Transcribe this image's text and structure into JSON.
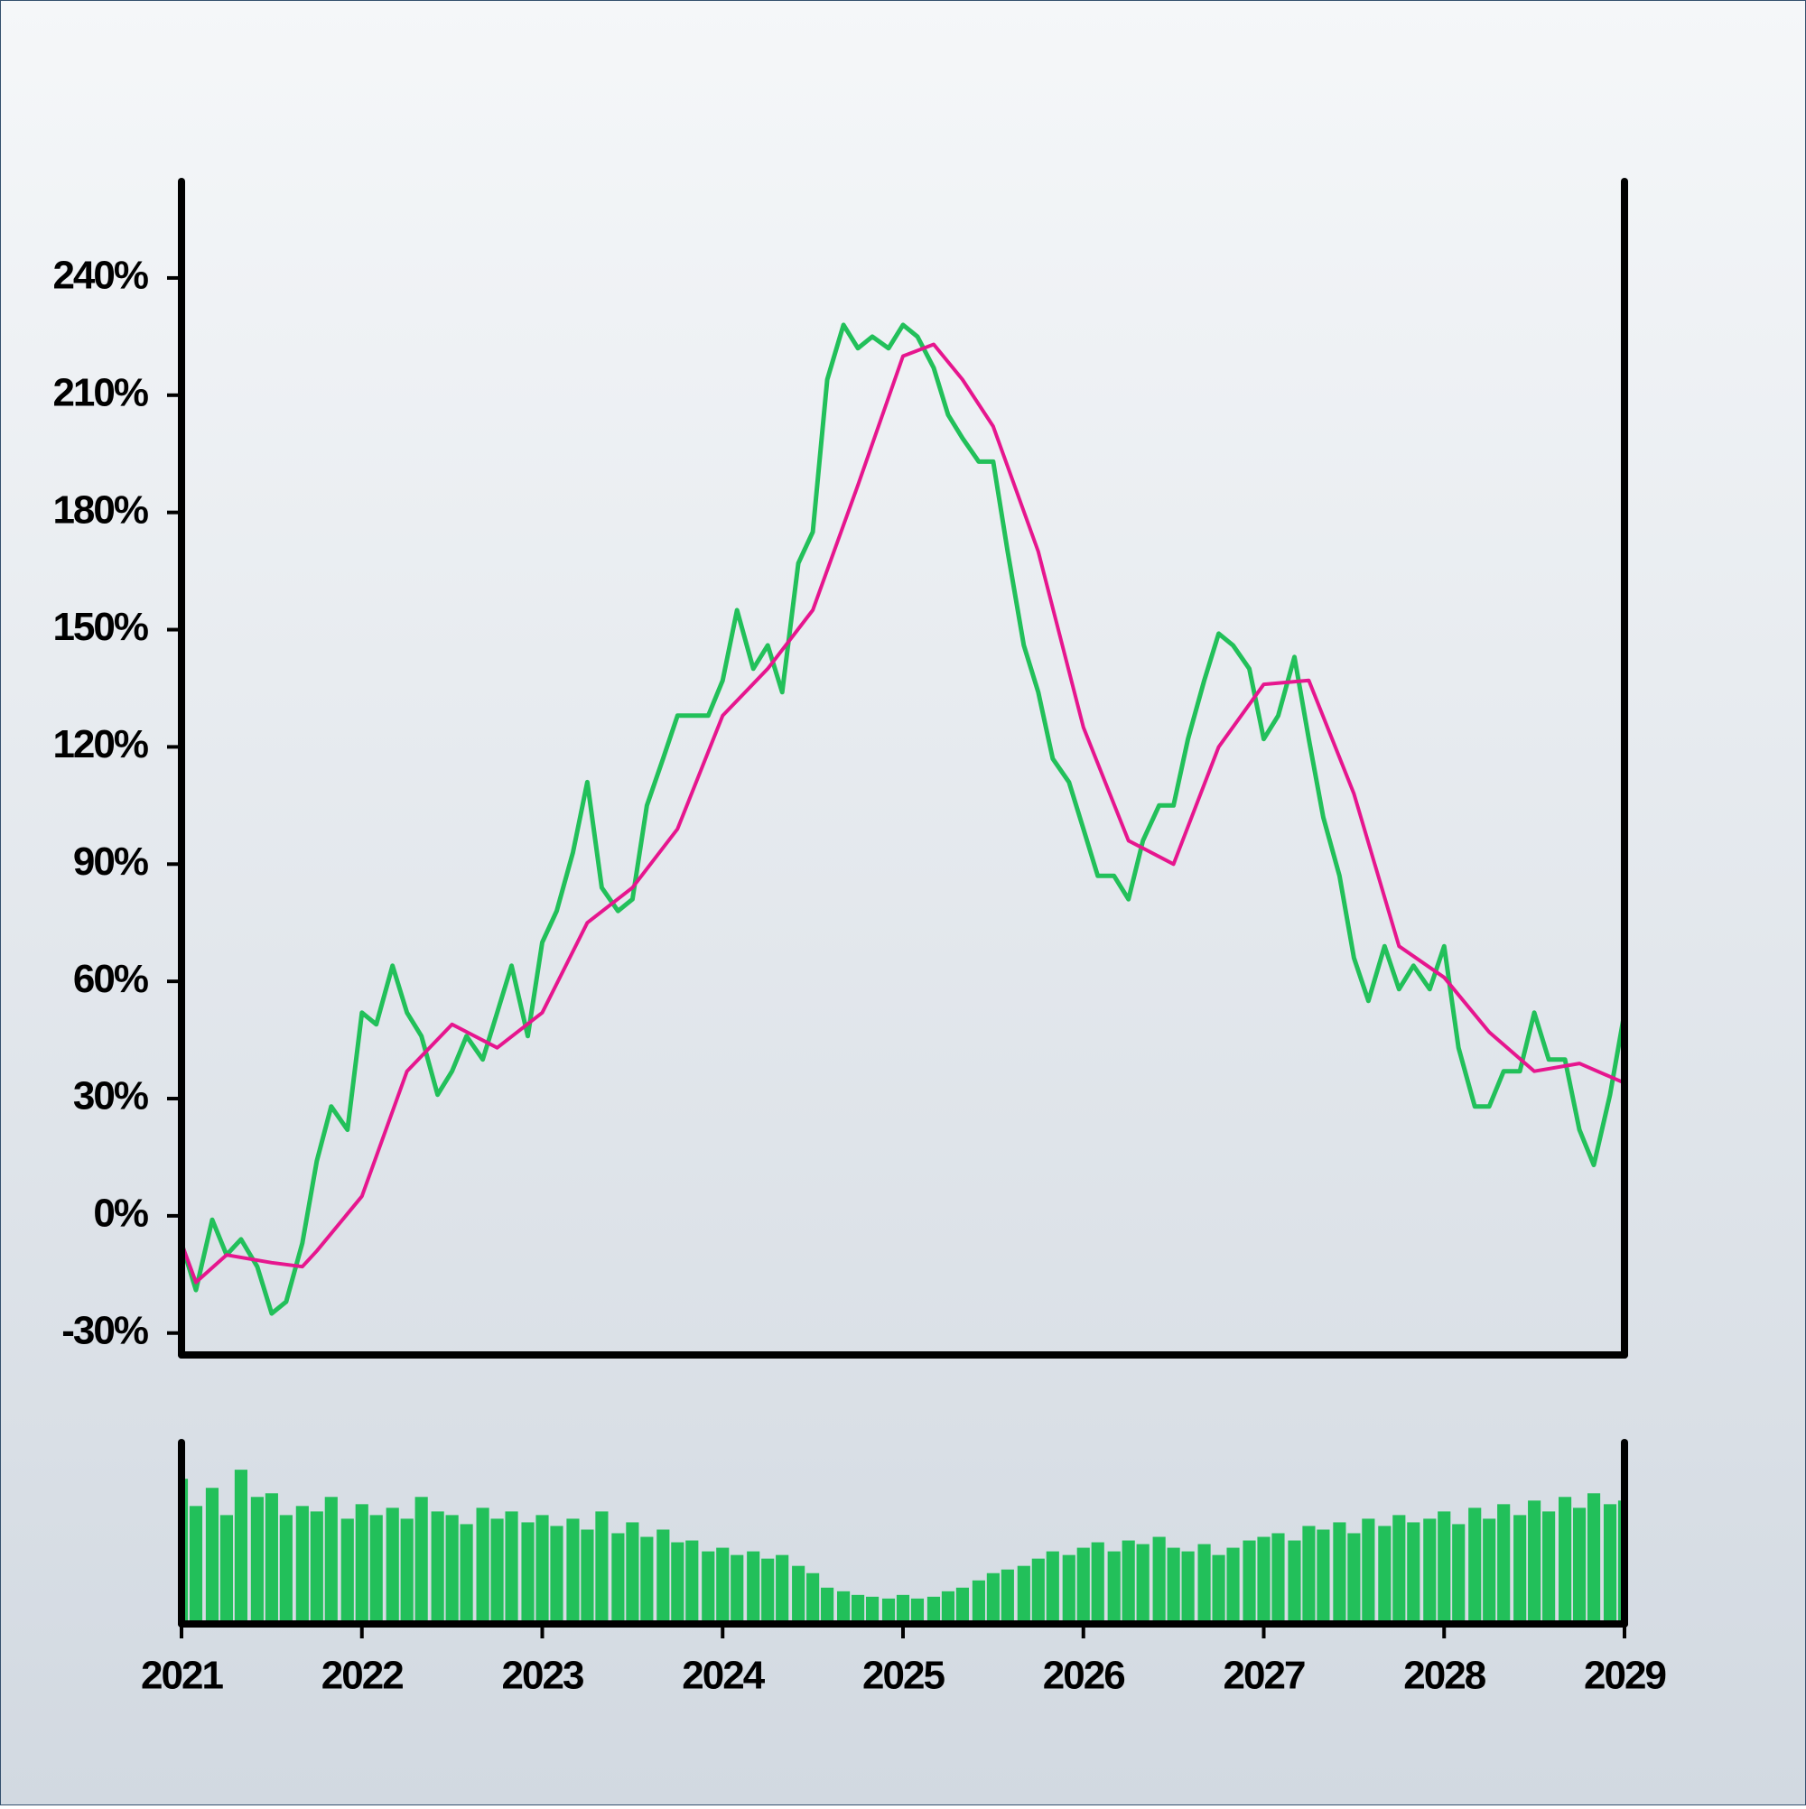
{
  "chart_data": [
    {
      "type": "line",
      "xlim": [
        2021,
        2029
      ],
      "ylim": [
        -35.6,
        264.7
      ],
      "yticks": [
        {
          "value": -30,
          "label": "-30%"
        },
        {
          "value": 0,
          "label": "0%"
        },
        {
          "value": 30,
          "label": "30%"
        },
        {
          "value": 60,
          "label": "60%"
        },
        {
          "value": 90,
          "label": "90%"
        },
        {
          "value": 120,
          "label": "120%"
        },
        {
          "value": 150,
          "label": "150%"
        },
        {
          "value": 180,
          "label": "180%"
        },
        {
          "value": 210,
          "label": "210%"
        },
        {
          "value": 240,
          "label": "240%"
        }
      ],
      "series": [
        {
          "color": "#22c05a",
          "x": [
            2021.0,
            2021.08,
            2021.17,
            2021.25,
            2021.33,
            2021.42,
            2021.5,
            2021.58,
            2021.67,
            2021.75,
            2021.83,
            2021.92,
            2022.0,
            2022.08,
            2022.17,
            2022.25,
            2022.33,
            2022.42,
            2022.5,
            2022.58,
            2022.67,
            2022.75,
            2022.83,
            2022.92,
            2023.0,
            2023.08,
            2023.17,
            2023.25,
            2023.33,
            2023.42,
            2023.5,
            2023.58,
            2023.67,
            2023.75,
            2023.83,
            2023.92,
            2024.0,
            2024.08,
            2024.17,
            2024.25,
            2024.33,
            2024.42,
            2024.5,
            2024.58,
            2024.67,
            2024.75,
            2024.83,
            2024.92,
            2025.0,
            2025.08,
            2025.17,
            2025.25,
            2025.33,
            2025.42,
            2025.5,
            2025.58,
            2025.67,
            2025.75,
            2025.83,
            2025.92,
            2026.0,
            2026.08,
            2026.17,
            2026.25,
            2026.33,
            2026.42,
            2026.5,
            2026.58,
            2026.67,
            2026.75,
            2026.83,
            2026.92,
            2027.0,
            2027.08,
            2027.17,
            2027.25,
            2027.33,
            2027.42,
            2027.5,
            2027.58,
            2027.67,
            2027.75,
            2027.83,
            2027.92,
            2028.0,
            2028.08,
            2028.17,
            2028.25,
            2028.33,
            2028.42,
            2028.5,
            2028.58,
            2028.67,
            2028.75,
            2028.83,
            2028.92,
            2029.0
          ],
          "values": [
            -7,
            -19,
            -1,
            -10,
            -6,
            -13,
            -25,
            -22,
            -7,
            14,
            28,
            22,
            52,
            49,
            64,
            52,
            46,
            31,
            37,
            46,
            40,
            52,
            64,
            46,
            70,
            78,
            93,
            111,
            84,
            78,
            81,
            105,
            117,
            128,
            128,
            128,
            137,
            155,
            140,
            146,
            134,
            167,
            175,
            214,
            228,
            222,
            225,
            222,
            228,
            225,
            217,
            205,
            199,
            193,
            193,
            170,
            146,
            134,
            117,
            111,
            99,
            87,
            87,
            81,
            96,
            105,
            105,
            122,
            137,
            149,
            146,
            140,
            122,
            128,
            143,
            122,
            102,
            87,
            66,
            55,
            69,
            58,
            64,
            58,
            69,
            43,
            28,
            28,
            37,
            37,
            52,
            40,
            40,
            22,
            13,
            31,
            52
          ]
        },
        {
          "color": "#e6168e",
          "x": [
            2021.0,
            2021.08,
            2021.25,
            2021.5,
            2021.67,
            2021.75,
            2022.0,
            2022.25,
            2022.5,
            2022.75,
            2023.0,
            2023.25,
            2023.5,
            2023.75,
            2024.0,
            2024.25,
            2024.5,
            2024.75,
            2025.0,
            2025.17,
            2025.33,
            2025.5,
            2025.75,
            2026.0,
            2026.25,
            2026.5,
            2026.75,
            2027.0,
            2027.25,
            2027.5,
            2027.75,
            2028.0,
            2028.25,
            2028.5,
            2028.75,
            2029.0
          ],
          "values": [
            -7,
            -17,
            -10,
            -12,
            -13,
            -9,
            5,
            37,
            49,
            43,
            52,
            75,
            84,
            99,
            128,
            140,
            155,
            187,
            220,
            223,
            214,
            202,
            170,
            125,
            96,
            90,
            120,
            136,
            137,
            108,
            69,
            61,
            47,
            37,
            39,
            34
          ]
        }
      ]
    },
    {
      "type": "bar",
      "color": "#22c05a",
      "xlim": [
        2021,
        2029
      ],
      "ylim": [
        0,
        100
      ],
      "xticks": [
        2021,
        2022,
        2023,
        2024,
        2025,
        2026,
        2027,
        2028,
        2029
      ],
      "x": [
        2021.0,
        2021.08,
        2021.17,
        2021.25,
        2021.33,
        2021.42,
        2021.5,
        2021.58,
        2021.67,
        2021.75,
        2021.83,
        2021.92,
        2022.0,
        2022.08,
        2022.17,
        2022.25,
        2022.33,
        2022.42,
        2022.5,
        2022.58,
        2022.67,
        2022.75,
        2022.83,
        2022.92,
        2023.0,
        2023.08,
        2023.17,
        2023.25,
        2023.33,
        2023.42,
        2023.5,
        2023.58,
        2023.67,
        2023.75,
        2023.83,
        2023.92,
        2024.0,
        2024.08,
        2024.17,
        2024.25,
        2024.33,
        2024.42,
        2024.5,
        2024.58,
        2024.67,
        2024.75,
        2024.83,
        2024.92,
        2025.0,
        2025.08,
        2025.17,
        2025.25,
        2025.33,
        2025.42,
        2025.5,
        2025.58,
        2025.67,
        2025.75,
        2025.83,
        2025.92,
        2026.0,
        2026.08,
        2026.17,
        2026.25,
        2026.33,
        2026.42,
        2026.5,
        2026.58,
        2026.67,
        2026.75,
        2026.83,
        2026.92,
        2027.0,
        2027.08,
        2027.17,
        2027.25,
        2027.33,
        2027.42,
        2027.5,
        2027.58,
        2027.67,
        2027.75,
        2027.83,
        2027.92,
        2028.0,
        2028.08,
        2028.17,
        2028.25,
        2028.33,
        2028.42,
        2028.5,
        2028.58,
        2028.67,
        2028.75,
        2028.83,
        2028.92,
        2029.0
      ],
      "values": [
        80,
        65,
        75,
        60,
        85,
        70,
        72,
        60,
        65,
        62,
        70,
        58,
        66,
        60,
        64,
        58,
        70,
        62,
        60,
        55,
        64,
        58,
        62,
        56,
        60,
        54,
        58,
        52,
        62,
        50,
        56,
        48,
        52,
        45,
        46,
        40,
        42,
        38,
        40,
        36,
        38,
        32,
        28,
        20,
        18,
        16,
        15,
        14,
        16,
        14,
        15,
        18,
        20,
        24,
        28,
        30,
        32,
        36,
        40,
        38,
        42,
        45,
        40,
        46,
        44,
        48,
        42,
        40,
        44,
        38,
        42,
        46,
        48,
        50,
        46,
        54,
        52,
        56,
        50,
        58,
        54,
        60,
        56,
        58,
        62,
        55,
        64,
        58,
        66,
        60,
        68,
        62,
        70,
        64,
        72,
        66,
        68
      ]
    }
  ]
}
